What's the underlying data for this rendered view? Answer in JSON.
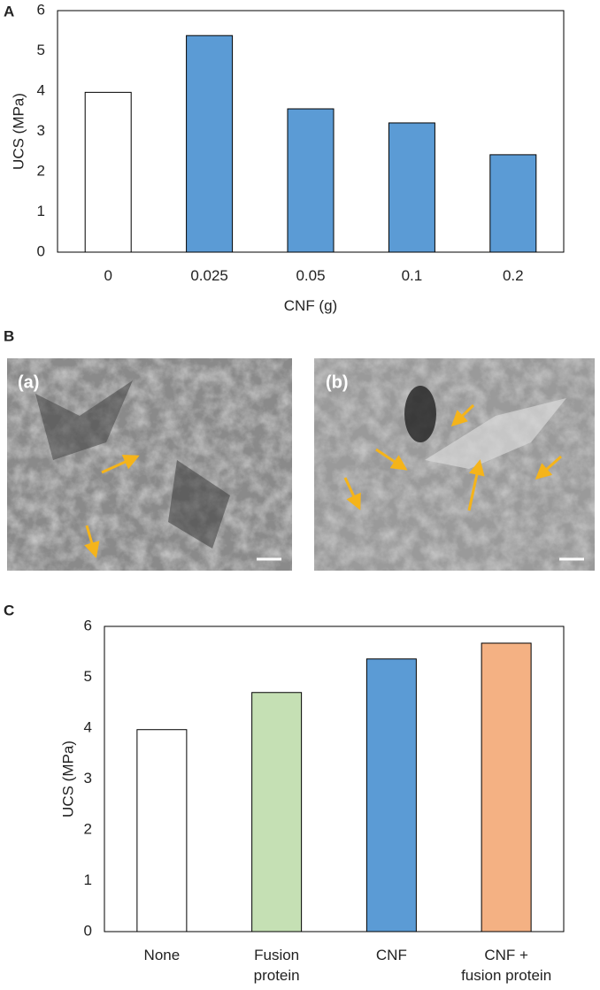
{
  "chart_data": [
    {
      "type": "bar",
      "panel": "A",
      "x_label": "CNF (g)",
      "y_label": "UCS (MPa)",
      "categories": [
        "0",
        "0.025",
        "0.05",
        "0.1",
        "0.2"
      ],
      "values": [
        3.97,
        5.38,
        3.56,
        3.21,
        2.42
      ],
      "colors": [
        "#ffffff",
        "#5b9bd5",
        "#5b9bd5",
        "#5b9bd5",
        "#5b9bd5"
      ],
      "ylim": [
        0,
        6
      ],
      "yticks": [
        0,
        1,
        2,
        3,
        4,
        5,
        6
      ],
      "grid": false
    },
    {
      "type": "bar",
      "panel": "C",
      "y_label": "UCS (MPa)",
      "categories": [
        "None",
        "Fusion\nprotein",
        "CNF",
        "CNF +\nfusion protein"
      ],
      "values": [
        3.97,
        4.7,
        5.36,
        5.67
      ],
      "colors": [
        "#ffffff",
        "#c5e0b4",
        "#5b9bd5",
        "#f4b183"
      ],
      "ylim": [
        0,
        6
      ],
      "yticks": [
        0,
        1,
        2,
        3,
        4,
        5,
        6
      ],
      "grid": false
    }
  ],
  "figure_b": {
    "panel": "B",
    "labels": [
      "(a)",
      "(b)"
    ]
  }
}
